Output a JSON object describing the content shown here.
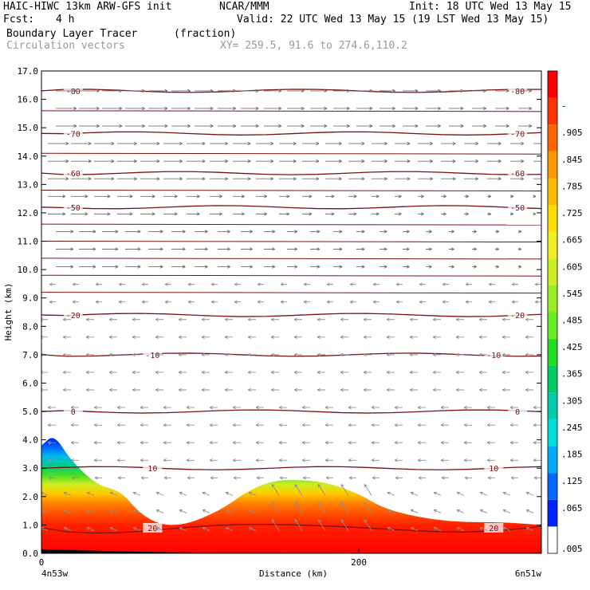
{
  "header": {
    "title_left": "HAIC-HIWC 13km ARW-GFS init",
    "title_center": "NCAR/MMM",
    "init": "Init: 18 UTC Wed 13 May 15",
    "fcst_label": "Fcst:",
    "fcst_value": "4 h",
    "valid": "Valid: 22 UTC Wed 13 May 15 (19 LST Wed 13 May 15)",
    "field1_name": "Boundary Layer Tracer",
    "field1_units": "(fraction)",
    "field2_name": "Circulation vectors",
    "xy": "XY= 259.5, 91.6 to 274.6,110.2"
  },
  "chart_data": {
    "type": "heatmap",
    "ylabel": "Height (km)",
    "xlabel": "Distance (km)",
    "ylim": [
      0.0,
      17.0
    ],
    "xlim": [
      0,
      315
    ],
    "yticks": [
      "0.0",
      "1.0",
      "2.0",
      "3.0",
      "4.0",
      "5.0",
      "6.0",
      "7.0",
      "8.0",
      "9.0",
      "10.0",
      "11.0",
      "12.0",
      "13.0",
      "14.0",
      "15.0",
      "16.0",
      "17.0"
    ],
    "xticks": [
      {
        "value": 0,
        "label": "0"
      },
      {
        "value": 200,
        "label": "200"
      }
    ],
    "x_end_labels": {
      "left": "4n53w",
      "right": "6n51w"
    },
    "colorbar": {
      "labels": [
        ".005",
        ".065",
        ".125",
        ".185",
        ".245",
        ".305",
        ".365",
        ".425",
        ".485",
        ".545",
        ".605",
        ".665",
        ".725",
        ".785",
        ".845",
        ".905",
        "-"
      ],
      "colors": [
        "#ffffff",
        "#0022ff",
        "#0066ff",
        "#00aaff",
        "#00dddd",
        "#00ccaa",
        "#00cc66",
        "#22dd22",
        "#66ee22",
        "#99ee22",
        "#ccee22",
        "#eeee22",
        "#ffdd00",
        "#ffbb00",
        "#ff9900",
        "#ff6600",
        "#ff3300",
        "#ff0000"
      ]
    },
    "contours": [
      {
        "label": "-80",
        "height": 16.3
      },
      {
        "label": "-70",
        "height": 14.8
      },
      {
        "label": "-60",
        "height": 13.4
      },
      {
        "label": "-50",
        "height": 12.2
      },
      {
        "label": "-20",
        "height": 8.4
      },
      {
        "label": "-10",
        "height": 7.0
      },
      {
        "label": "0",
        "height": 5.0
      },
      {
        "label": "10",
        "height": 3.0
      },
      {
        "label": "20",
        "height": 0.9
      }
    ],
    "tracer_top_km": [
      {
        "x": 0,
        "y": 3.8
      },
      {
        "x": 8,
        "y": 4.2
      },
      {
        "x": 18,
        "y": 3.3
      },
      {
        "x": 35,
        "y": 2.4
      },
      {
        "x": 50,
        "y": 2.2
      },
      {
        "x": 62,
        "y": 1.4
      },
      {
        "x": 75,
        "y": 1.0
      },
      {
        "x": 88,
        "y": 1.0
      },
      {
        "x": 100,
        "y": 1.2
      },
      {
        "x": 115,
        "y": 1.6
      },
      {
        "x": 130,
        "y": 2.2
      },
      {
        "x": 145,
        "y": 2.55
      },
      {
        "x": 160,
        "y": 2.6
      },
      {
        "x": 180,
        "y": 2.5
      },
      {
        "x": 200,
        "y": 2.1
      },
      {
        "x": 215,
        "y": 1.6
      },
      {
        "x": 235,
        "y": 1.3
      },
      {
        "x": 260,
        "y": 1.1
      },
      {
        "x": 290,
        "y": 1.1
      },
      {
        "x": 315,
        "y": 1.0
      }
    ]
  }
}
